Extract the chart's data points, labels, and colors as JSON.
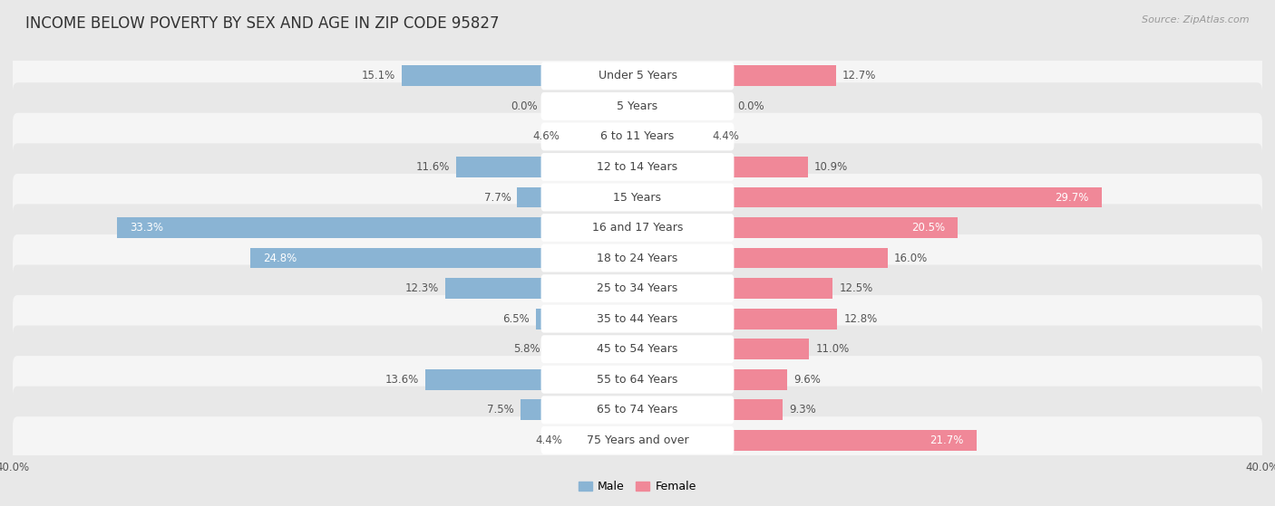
{
  "title": "INCOME BELOW POVERTY BY SEX AND AGE IN ZIP CODE 95827",
  "source": "Source: ZipAtlas.com",
  "categories": [
    "Under 5 Years",
    "5 Years",
    "6 to 11 Years",
    "12 to 14 Years",
    "15 Years",
    "16 and 17 Years",
    "18 to 24 Years",
    "25 to 34 Years",
    "35 to 44 Years",
    "45 to 54 Years",
    "55 to 64 Years",
    "65 to 74 Years",
    "75 Years and over"
  ],
  "male_values": [
    15.1,
    0.0,
    4.6,
    11.6,
    7.7,
    33.3,
    24.8,
    12.3,
    6.5,
    5.8,
    13.6,
    7.5,
    4.4
  ],
  "female_values": [
    12.7,
    0.0,
    4.4,
    10.9,
    29.7,
    20.5,
    16.0,
    12.5,
    12.8,
    11.0,
    9.6,
    9.3,
    21.7
  ],
  "male_color": "#8ab4d4",
  "female_color": "#f08898",
  "male_label": "Male",
  "female_label": "Female",
  "axis_max": 40.0,
  "background_color": "#e8e8e8",
  "row_bg_light": "#f5f5f5",
  "row_bg_dark": "#e8e8e8",
  "title_fontsize": 12,
  "cat_fontsize": 9,
  "value_fontsize": 8.5,
  "source_fontsize": 8,
  "legend_fontsize": 9
}
